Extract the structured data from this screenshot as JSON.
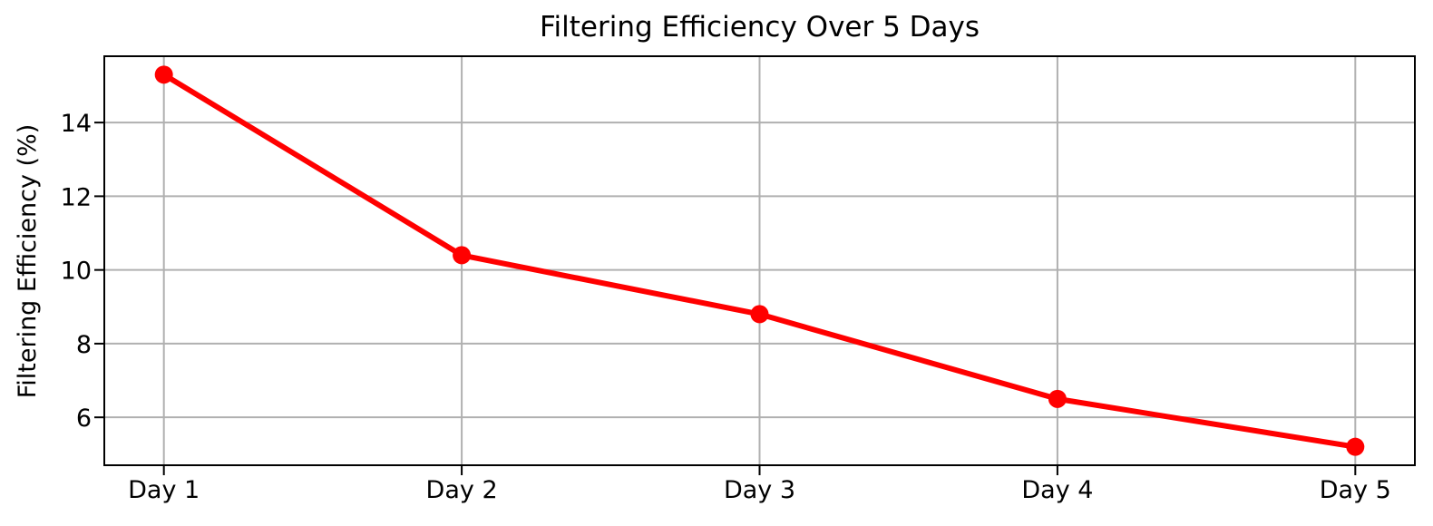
{
  "chart_data": {
    "type": "line",
    "title": "Filtering Efficiency Over 5 Days",
    "xlabel": "",
    "ylabel": "Filtering Efficiency (%)",
    "categories": [
      "Day 1",
      "Day 2",
      "Day 3",
      "Day 4",
      "Day 5"
    ],
    "values": [
      15.3,
      10.4,
      8.8,
      6.5,
      5.2
    ],
    "series_name": "Filtering Efficiency (%)",
    "yticks": [
      6,
      8,
      10,
      12,
      14
    ],
    "ylim": [
      4.7,
      15.8
    ],
    "xlim": [
      -0.2,
      4.2
    ],
    "grid": true,
    "legend": false,
    "marker": "circle",
    "colors": {
      "line": "#ff0000",
      "marker": "#ff0000",
      "grid": "#b0b0b0",
      "axis": "#000000",
      "text": "#000000",
      "background": "#ffffff"
    }
  }
}
